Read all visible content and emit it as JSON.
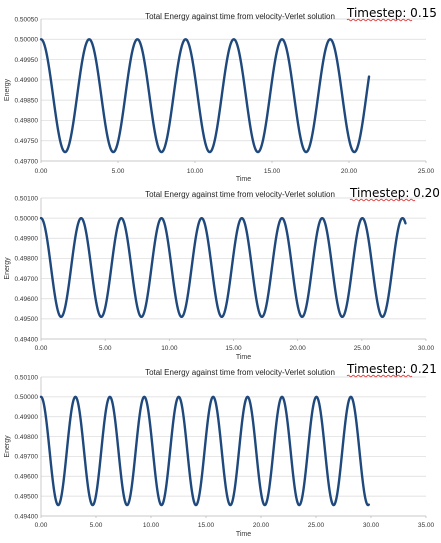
{
  "charts": [
    {
      "timestep_label": "Timestep: 0.15",
      "chart_data": {
        "type": "line",
        "title": "Total Energy against time from velocity-Verlet solution",
        "xlabel": "Time",
        "ylabel": "Energy",
        "xlim": [
          0,
          25
        ],
        "ylim": [
          0.497,
          0.5005
        ],
        "xticks": [
          "0.00",
          "5.00",
          "10.00",
          "15.00",
          "20.00",
          "25.00"
        ],
        "yticks": [
          "0.49700",
          "0.49750",
          "0.49800",
          "0.49850",
          "0.49900",
          "0.49950",
          "0.50000",
          "0.50050"
        ],
        "grid": "horizontal",
        "line_color": "#1f497d",
        "series": [
          {
            "model": {
              "max": 0.5,
              "min": 0.49722,
              "period": 3.13,
              "t_end": 21.3,
              "dt": 0.15
            }
          }
        ]
      }
    },
    {
      "timestep_label": "Timestep: 0.20",
      "chart_data": {
        "type": "line",
        "title": "Total Energy against time from velocity-Verlet solution",
        "xlabel": "Time",
        "ylabel": "Energy",
        "xlim": [
          0,
          30
        ],
        "ylim": [
          0.494,
          0.501
        ],
        "xticks": [
          "0.00",
          "5.00",
          "10.00",
          "15.00",
          "20.00",
          "25.00",
          "30.00"
        ],
        "yticks": [
          "0.49400",
          "0.49500",
          "0.49600",
          "0.49700",
          "0.49800",
          "0.49900",
          "0.50000",
          "0.50100"
        ],
        "grid": "horizontal",
        "line_color": "#1f497d",
        "series": [
          {
            "model": {
              "max": 0.5,
              "min": 0.4951,
              "period": 3.13,
              "t_end": 28.4,
              "dt": 0.2
            }
          }
        ]
      }
    },
    {
      "timestep_label": "Timestep: 0.21",
      "chart_data": {
        "type": "line",
        "title": "Total Energy against time from velocity-Verlet solution",
        "xlabel": "Time",
        "ylabel": "Energy",
        "xlim": [
          0,
          35
        ],
        "ylim": [
          0.494,
          0.501
        ],
        "xticks": [
          "0.00",
          "5.00",
          "10.00",
          "15.00",
          "20.00",
          "25.00",
          "30.00",
          "35.00"
        ],
        "yticks": [
          "0.49400",
          "0.49500",
          "0.49600",
          "0.49700",
          "0.49800",
          "0.49900",
          "0.50000",
          "0.50100"
        ],
        "grid": "horizontal",
        "line_color": "#1f497d",
        "series": [
          {
            "model": {
              "max": 0.5,
              "min": 0.49455,
              "period": 3.13,
              "t_end": 29.8,
              "dt": 0.21
            }
          }
        ]
      }
    }
  ]
}
